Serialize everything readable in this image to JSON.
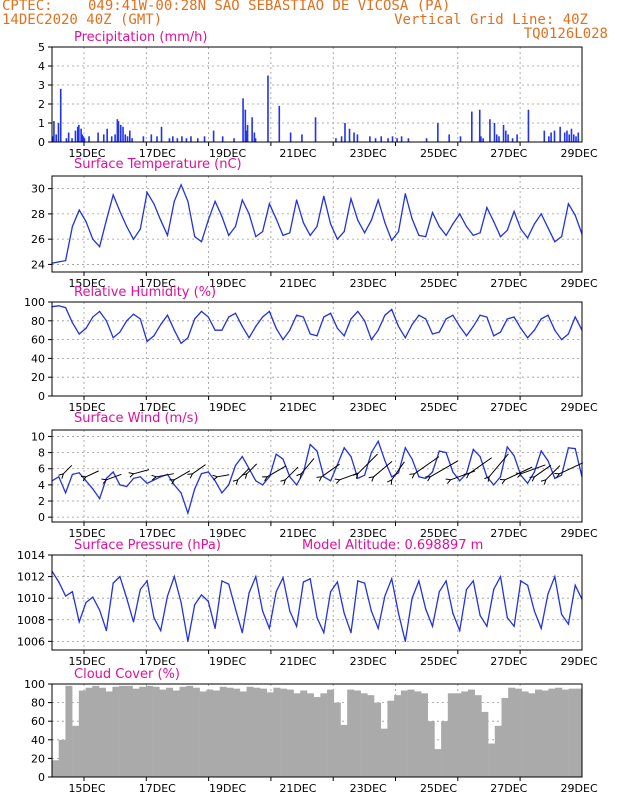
{
  "header": {
    "source": "CPTEC:",
    "location": "049:41W-00:28N  SAO SEBASTIAO DE VICOSA (PA)",
    "run": "14DEC2020 40Z (GMT)",
    "grid_line": "Vertical Grid Line: 40Z",
    "code": "TQ0126L028"
  },
  "colors": {
    "header": "#e07020",
    "title": "#e0109a",
    "line": "#2233dd",
    "bars": "#2233ee",
    "cloud": "#aaaaaa",
    "wind_arrow": "#000000"
  },
  "chart_data": [
    {
      "type": "bar",
      "title": "Precipitation (mm/h)",
      "x_tick_labels": [
        "15DEC",
        "17DEC",
        "19DEC",
        "21DEC",
        "23DEC",
        "25DEC",
        "27DEC",
        "29DEC"
      ],
      "ylim": [
        0,
        5
      ],
      "yticks": [
        0,
        1,
        2,
        3,
        4,
        5
      ],
      "grid": true,
      "x_hours": [
        0,
        1,
        3,
        5,
        7,
        12,
        14,
        17,
        20,
        22,
        23,
        25,
        26,
        27,
        28,
        32,
        40,
        45,
        48,
        52,
        55,
        57,
        58,
        60,
        62,
        64,
        66,
        68,
        70,
        80,
        87,
        92,
        96,
        103,
        106,
        110,
        114,
        118,
        122,
        128,
        134,
        142,
        150,
        160,
        168,
        170,
        171,
        172,
        176,
        178,
        179,
        190,
        200,
        210,
        220,
        232,
        250,
        255,
        258,
        262,
        266,
        269,
        280,
        285,
        290,
        296,
        300,
        304,
        308,
        314,
        330,
        340,
        350,
        360,
        370,
        377,
        378,
        380,
        386,
        390,
        392,
        394,
        398,
        400,
        402,
        406,
        410,
        420,
        434,
        438,
        440,
        443,
        448,
        452,
        454,
        456,
        458,
        460,
        462,
        464
      ],
      "values": [
        0.3,
        1.1,
        0.4,
        1.0,
        2.8,
        0.2,
        0.5,
        0.2,
        0.6,
        0.8,
        0.9,
        0.7,
        0.4,
        0.3,
        0.2,
        0.3,
        0.5,
        0.4,
        0.7,
        0.3,
        0.4,
        1.2,
        1.1,
        0.9,
        0.8,
        0.4,
        0.3,
        0.6,
        0.2,
        0.3,
        0.4,
        0.3,
        0.8,
        0.2,
        0.3,
        0.2,
        0.3,
        0.2,
        0.3,
        0.2,
        0.3,
        0.6,
        0.3,
        0.2,
        2.3,
        1.7,
        0.6,
        0.9,
        1.3,
        0.5,
        0.2,
        3.5,
        1.9,
        0.5,
        0.4,
        1.3,
        0.2,
        0.3,
        1.0,
        0.7,
        0.5,
        0.4,
        0.3,
        0.2,
        0.3,
        0.2,
        0.3,
        0.2,
        0.3,
        0.2,
        0.2,
        1.0,
        0.4,
        0.3,
        1.6,
        1.7,
        0.3,
        0.2,
        1.2,
        1.0,
        0.4,
        0.3,
        0.9,
        0.6,
        0.4,
        0.2,
        0.4,
        1.7,
        0.6,
        0.3,
        0.5,
        0.6,
        0.8,
        0.5,
        0.6,
        0.4,
        0.7,
        0.4,
        0.3,
        0.5
      ]
    },
    {
      "type": "line",
      "title": "Surface Temperature (nC)",
      "x_tick_labels": [
        "15DEC",
        "17DEC",
        "19DEC",
        "21DEC",
        "23DEC",
        "25DEC",
        "27DEC",
        "29DEC"
      ],
      "ylim": [
        23.4,
        31
      ],
      "yticks": [
        24,
        26,
        28,
        30
      ],
      "grid": true,
      "x_hours": [
        0,
        6,
        12,
        18,
        24,
        30,
        36,
        42,
        48,
        54,
        60,
        66,
        72,
        78,
        84,
        90,
        96,
        102,
        108,
        114,
        120,
        126,
        132,
        138,
        144,
        150,
        156,
        162,
        168,
        174,
        180,
        186,
        192,
        198,
        204,
        210,
        216,
        222,
        228,
        234,
        240,
        246,
        252,
        258,
        264,
        270,
        276,
        282,
        288,
        294,
        300,
        306,
        312,
        318,
        324,
        330,
        336,
        342,
        348,
        354,
        360,
        366,
        372,
        378,
        384,
        390,
        396,
        402,
        408,
        414,
        420,
        426,
        432,
        438,
        444,
        450,
        456,
        462,
        468
      ],
      "values": [
        24.1,
        24.2,
        24.3,
        27.0,
        28.3,
        27.4,
        26.0,
        25.4,
        27.5,
        29.5,
        28.2,
        27.0,
        26.0,
        26.8,
        29.7,
        28.8,
        27.5,
        26.3,
        29.0,
        30.3,
        29.0,
        26.2,
        25.8,
        27.5,
        29.0,
        27.8,
        26.3,
        27.0,
        29.1,
        28.0,
        26.2,
        26.6,
        28.8,
        27.6,
        26.3,
        26.5,
        29.1,
        27.3,
        26.3,
        27.0,
        29.4,
        27.2,
        26.0,
        26.6,
        29.2,
        27.5,
        26.5,
        27.5,
        29.1,
        27.3,
        25.9,
        26.6,
        29.6,
        27.6,
        26.3,
        26.2,
        28.1,
        27.0,
        26.3,
        27.2,
        28.0,
        27.0,
        26.3,
        26.5,
        28.5,
        27.4,
        26.2,
        26.7,
        28.2,
        26.8,
        26.1,
        27.2,
        28.0,
        26.9,
        25.8,
        26.2,
        28.8,
        27.9,
        26.4
      ]
    },
    {
      "type": "line",
      "title": "Relative Humidity (%)",
      "x_tick_labels": [
        "15DEC",
        "17DEC",
        "19DEC",
        "21DEC",
        "23DEC",
        "25DEC",
        "27DEC",
        "29DEC"
      ],
      "ylim": [
        0,
        100
      ],
      "yticks": [
        0,
        20,
        40,
        60,
        80,
        100
      ],
      "grid": true,
      "x_hours": [
        0,
        6,
        12,
        18,
        24,
        30,
        36,
        42,
        48,
        54,
        60,
        66,
        72,
        78,
        84,
        90,
        96,
        102,
        108,
        114,
        120,
        126,
        132,
        138,
        144,
        150,
        156,
        162,
        168,
        174,
        180,
        186,
        192,
        198,
        204,
        210,
        216,
        222,
        228,
        234,
        240,
        246,
        252,
        258,
        264,
        270,
        276,
        282,
        288,
        294,
        300,
        306,
        312,
        318,
        324,
        330,
        336,
        342,
        348,
        354,
        360,
        366,
        372,
        378,
        384,
        390,
        396,
        402,
        408,
        414,
        420,
        426,
        432,
        438,
        444,
        450,
        456,
        462,
        468
      ],
      "values": [
        95,
        96,
        94,
        78,
        66,
        72,
        84,
        90,
        80,
        62,
        68,
        80,
        87,
        82,
        58,
        64,
        76,
        86,
        70,
        56,
        62,
        82,
        90,
        84,
        70,
        70,
        84,
        88,
        74,
        62,
        74,
        84,
        90,
        72,
        60,
        70,
        86,
        84,
        66,
        64,
        84,
        88,
        72,
        64,
        82,
        90,
        80,
        60,
        70,
        86,
        92,
        74,
        62,
        76,
        86,
        82,
        66,
        68,
        82,
        86,
        74,
        64,
        74,
        86,
        84,
        64,
        68,
        82,
        84,
        72,
        62,
        70,
        82,
        86,
        70,
        60,
        66,
        84,
        70
      ]
    },
    {
      "type": "line",
      "title": "Surface Wind (m/s)",
      "x_tick_labels": [
        "15DEC",
        "17DEC",
        "19DEC",
        "21DEC",
        "23DEC",
        "25DEC",
        "27DEC",
        "29DEC"
      ],
      "ylim": [
        -0.6,
        10.8
      ],
      "yticks": [
        0,
        2,
        4,
        6,
        8,
        10
      ],
      "grid": true,
      "x_hours": [
        0,
        6,
        12,
        18,
        24,
        30,
        36,
        42,
        48,
        54,
        60,
        66,
        72,
        78,
        84,
        90,
        96,
        102,
        108,
        114,
        120,
        126,
        132,
        138,
        144,
        150,
        156,
        162,
        168,
        174,
        180,
        186,
        192,
        198,
        204,
        210,
        216,
        222,
        228,
        234,
        240,
        246,
        252,
        258,
        264,
        270,
        276,
        282,
        288,
        294,
        300,
        306,
        312,
        318,
        324,
        330,
        336,
        342,
        348,
        354,
        360,
        366,
        372,
        378,
        384,
        390,
        396,
        402,
        408,
        414,
        420,
        426,
        432,
        438,
        444,
        450,
        456,
        462,
        468
      ],
      "values": [
        4.5,
        5.0,
        3.0,
        5.3,
        5.5,
        4.5,
        3.5,
        2.3,
        4.8,
        5.6,
        4.0,
        3.8,
        4.8,
        5.0,
        4.2,
        4.6,
        5.0,
        5.3,
        4.0,
        3.0,
        0.5,
        3.5,
        5.4,
        5.6,
        4.5,
        3.0,
        4.0,
        6.4,
        7.5,
        6.0,
        4.5,
        4.0,
        5.0,
        7.8,
        7.2,
        5.0,
        4.0,
        5.5,
        9.0,
        8.2,
        5.0,
        4.5,
        6.5,
        8.6,
        7.5,
        4.8,
        5.2,
        8.0,
        9.4,
        7.0,
        5.0,
        5.5,
        8.6,
        7.2,
        5.0,
        4.8,
        5.6,
        8.2,
        8.0,
        5.6,
        4.5,
        5.4,
        8.4,
        7.5,
        5.0,
        4.0,
        5.0,
        8.7,
        7.6,
        5.2,
        4.2,
        5.6,
        8.2,
        7.0,
        4.8,
        5.2,
        8.6,
        8.5,
        5.0
      ],
      "arrow_hours": [
        10,
        30,
        48,
        72,
        92,
        108,
        124,
        146,
        164,
        172,
        190,
        206,
        220,
        238,
        254,
        270,
        284,
        300,
        320,
        334,
        352,
        368,
        386,
        400,
        414,
        426,
        436,
        448
      ],
      "arrow_angles_deg": [
        225,
        205,
        200,
        195,
        190,
        210,
        215,
        190,
        225,
        225,
        210,
        225,
        230,
        215,
        200,
        225,
        220,
        235,
        215,
        210,
        200,
        215,
        230,
        205,
        200,
        215,
        225,
        205
      ],
      "arrow_lengths": [
        12,
        14,
        16,
        16,
        18,
        18,
        16,
        12,
        16,
        14,
        22,
        18,
        20,
        22,
        20,
        28,
        24,
        22,
        30,
        32,
        26,
        28,
        30,
        30,
        26,
        20,
        20,
        26
      ]
    },
    {
      "type": "line",
      "title": "Surface Pressure (hPa)",
      "annotation": "Model Altitude: 0.698897 m",
      "x_tick_labels": [
        "15DEC",
        "17DEC",
        "19DEC",
        "21DEC",
        "23DEC",
        "25DEC",
        "27DEC",
        "29DEC"
      ],
      "ylim": [
        1005.2,
        1014
      ],
      "yticks": [
        1006,
        1008,
        1010,
        1012,
        1014
      ],
      "grid": true,
      "x_hours": [
        0,
        6,
        12,
        18,
        24,
        30,
        36,
        42,
        48,
        54,
        60,
        66,
        72,
        78,
        84,
        90,
        96,
        102,
        108,
        114,
        120,
        126,
        132,
        138,
        144,
        150,
        156,
        162,
        168,
        174,
        180,
        186,
        192,
        198,
        204,
        210,
        216,
        222,
        228,
        234,
        240,
        246,
        252,
        258,
        264,
        270,
        276,
        282,
        288,
        294,
        300,
        306,
        312,
        318,
        324,
        330,
        336,
        342,
        348,
        354,
        360,
        366,
        372,
        378,
        384,
        390,
        396,
        402,
        408,
        414,
        420,
        426,
        432,
        438,
        444,
        450,
        456,
        462,
        468
      ],
      "values": [
        1012.5,
        1011.5,
        1010.2,
        1010.6,
        1007.8,
        1009.6,
        1010.1,
        1008.9,
        1007.0,
        1011.4,
        1012.0,
        1010.0,
        1007.8,
        1010.8,
        1011.6,
        1008.2,
        1007.0,
        1010.2,
        1012.0,
        1009.6,
        1006.0,
        1009.4,
        1010.3,
        1009.7,
        1007.2,
        1011.6,
        1011.3,
        1009.0,
        1006.8,
        1010.5,
        1012.0,
        1008.8,
        1007.2,
        1010.6,
        1011.9,
        1008.8,
        1007.4,
        1011.5,
        1011.8,
        1008.2,
        1006.8,
        1010.6,
        1011.5,
        1008.6,
        1006.8,
        1011.6,
        1011.4,
        1008.8,
        1007.2,
        1010.2,
        1011.8,
        1008.6,
        1006.0,
        1010.0,
        1011.6,
        1009.0,
        1007.4,
        1010.6,
        1011.6,
        1008.6,
        1007.0,
        1010.8,
        1011.6,
        1008.4,
        1007.4,
        1010.8,
        1012.0,
        1008.2,
        1007.4,
        1011.6,
        1011.2,
        1008.8,
        1007.2,
        1010.4,
        1012.0,
        1008.5,
        1007.6,
        1011.2,
        1009.9
      ]
    },
    {
      "type": "bar",
      "title": "Cloud Cover (%)",
      "x_tick_labels": [
        "15DEC",
        "17DEC",
        "19DEC",
        "21DEC",
        "23DEC",
        "25DEC",
        "27DEC",
        "29DEC"
      ],
      "ylim": [
        0,
        100
      ],
      "yticks": [
        0,
        20,
        40,
        60,
        80,
        100
      ],
      "grid": true,
      "x_hours": [
        0,
        6,
        12,
        18,
        24,
        30,
        36,
        42,
        48,
        54,
        60,
        66,
        72,
        78,
        84,
        90,
        96,
        102,
        108,
        114,
        120,
        126,
        132,
        138,
        144,
        150,
        156,
        162,
        168,
        174,
        180,
        186,
        192,
        198,
        204,
        210,
        216,
        222,
        228,
        234,
        240,
        246,
        252,
        258,
        264,
        270,
        276,
        282,
        288,
        294,
        300,
        306,
        312,
        318,
        324,
        330,
        336,
        342,
        348,
        354,
        360,
        366,
        372,
        378,
        384,
        390,
        396,
        402,
        408,
        414,
        420,
        426,
        432,
        438,
        444,
        450,
        456,
        462,
        468
      ],
      "values": [
        18,
        40,
        98,
        55,
        93,
        96,
        98,
        96,
        92,
        97,
        98,
        98,
        95,
        97,
        98,
        97,
        94,
        96,
        93,
        97,
        98,
        96,
        92,
        94,
        93,
        97,
        96,
        95,
        92,
        97,
        96,
        95,
        91,
        96,
        95,
        94,
        90,
        93,
        90,
        86,
        90,
        94,
        80,
        56,
        94,
        93,
        90,
        88,
        80,
        52,
        82,
        88,
        93,
        94,
        92,
        90,
        60,
        30,
        60,
        90,
        90,
        92,
        94,
        88,
        70,
        36,
        55,
        85,
        96,
        95,
        92,
        90,
        94,
        93,
        95,
        96,
        94,
        95,
        95
      ]
    }
  ]
}
